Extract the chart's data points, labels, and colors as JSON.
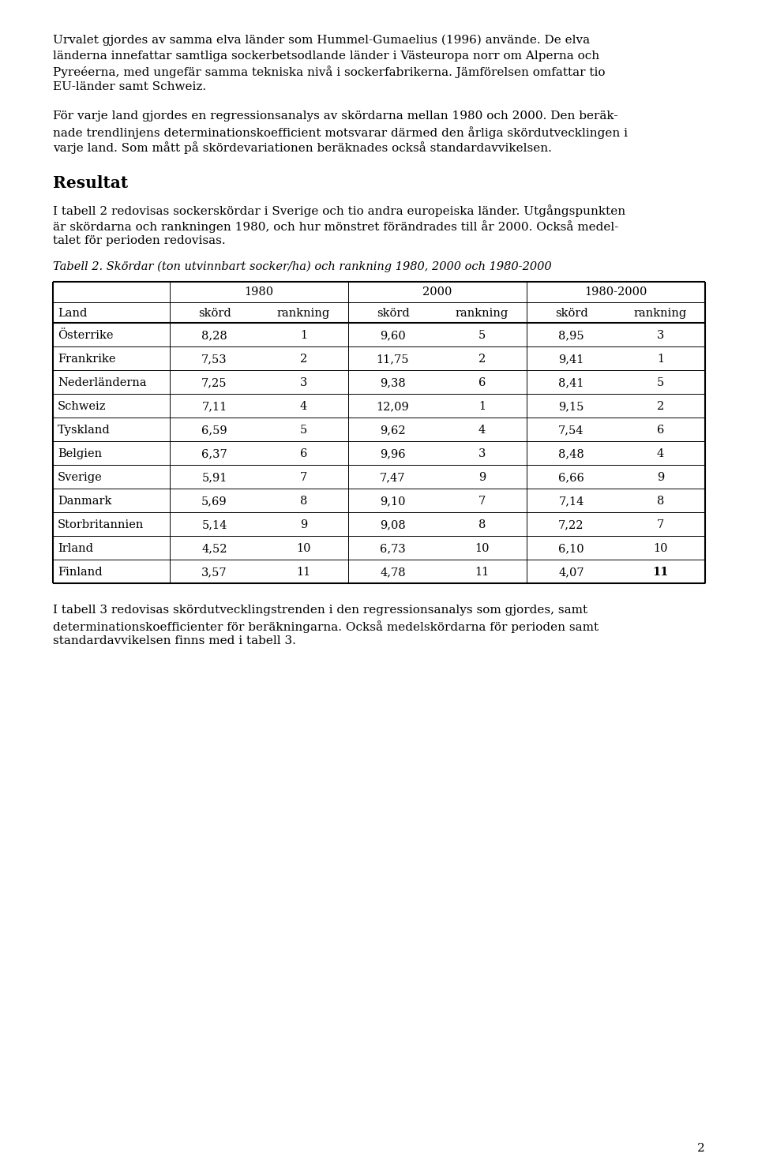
{
  "para1": "Urvalet gjordes av samma elva länder som Hummel-Gumaelius (1996) använde. De elva länderna innefattar samtliga sockerbetsodlande länder i Västeuropa norr om Alperna och Pyreéerna, med ungefär samma tekniska nivå i sockerfabrikerna. Jämförelsen omfattar tio EU-länder samt Schweiz.",
  "para2_line1": "För varje land gjordes en regressionsanalys av skördarna mellan 1980 och 2000. Den beräk-",
  "para2_line2": "nade trendlinjens determinationskoefficient motsvarar därmed den årliga skördutvecklingen i",
  "para2_line3": "varje land. Som mått på skördevariationen beräknades också standardavvikelsen.",
  "heading": "Resultat",
  "para3_line1": "I tabell 2 redovisas sockerskördar i Sverige och tio andra europeiska länder. Utgångspunkten",
  "para3_line2": "är skördarna och rankningen 1980, och hur mönstret förändrades till år 2000. Också medel-",
  "para3_line3": "talet för perioden redovisas.",
  "caption": "Tabell 2. Skördar (ton utvinnbart socker/ha) och rankning 1980, 2000 och 1980-2000",
  "para4_line1": "I tabell 3 redovisas skördutvecklingstrenden i den regressionsanalys som gjordes, samt",
  "para4_line2": "determinationskoefficienter för beräkningarna. Också medelskördarna för perioden samt",
  "para4_line3": "standardavvikelsen finns med i tabell 3.",
  "page_num": "2",
  "rows": [
    [
      "Österrike",
      "8,28",
      "1",
      "9,60",
      "5",
      "8,95",
      "3"
    ],
    [
      "Frankrike",
      "7,53",
      "2",
      "11,75",
      "2",
      "9,41",
      "1"
    ],
    [
      "Nederländerna",
      "7,25",
      "3",
      "9,38",
      "6",
      "8,41",
      "5"
    ],
    [
      "Schweiz",
      "7,11",
      "4",
      "12,09",
      "1",
      "9,15",
      "2"
    ],
    [
      "Tyskland",
      "6,59",
      "5",
      "9,62",
      "4",
      "7,54",
      "6"
    ],
    [
      "Belgien",
      "6,37",
      "6",
      "9,96",
      "3",
      "8,48",
      "4"
    ],
    [
      "Sverige",
      "5,91",
      "7",
      "7,47",
      "9",
      "6,66",
      "9"
    ],
    [
      "Danmark",
      "5,69",
      "8",
      "9,10",
      "7",
      "7,14",
      "8"
    ],
    [
      "Storbritannien",
      "5,14",
      "9",
      "9,08",
      "8",
      "7,22",
      "7"
    ],
    [
      "Irland",
      "4,52",
      "10",
      "6,73",
      "10",
      "6,10",
      "10"
    ],
    [
      "Finland",
      "3,57",
      "11",
      "4,78",
      "11",
      "4,07",
      "11"
    ]
  ],
  "bg_color": "#ffffff",
  "text_color": "#000000",
  "font_size_body": 11.0,
  "font_size_heading": 14.5,
  "font_size_table": 10.5,
  "font_size_caption": 10.5
}
